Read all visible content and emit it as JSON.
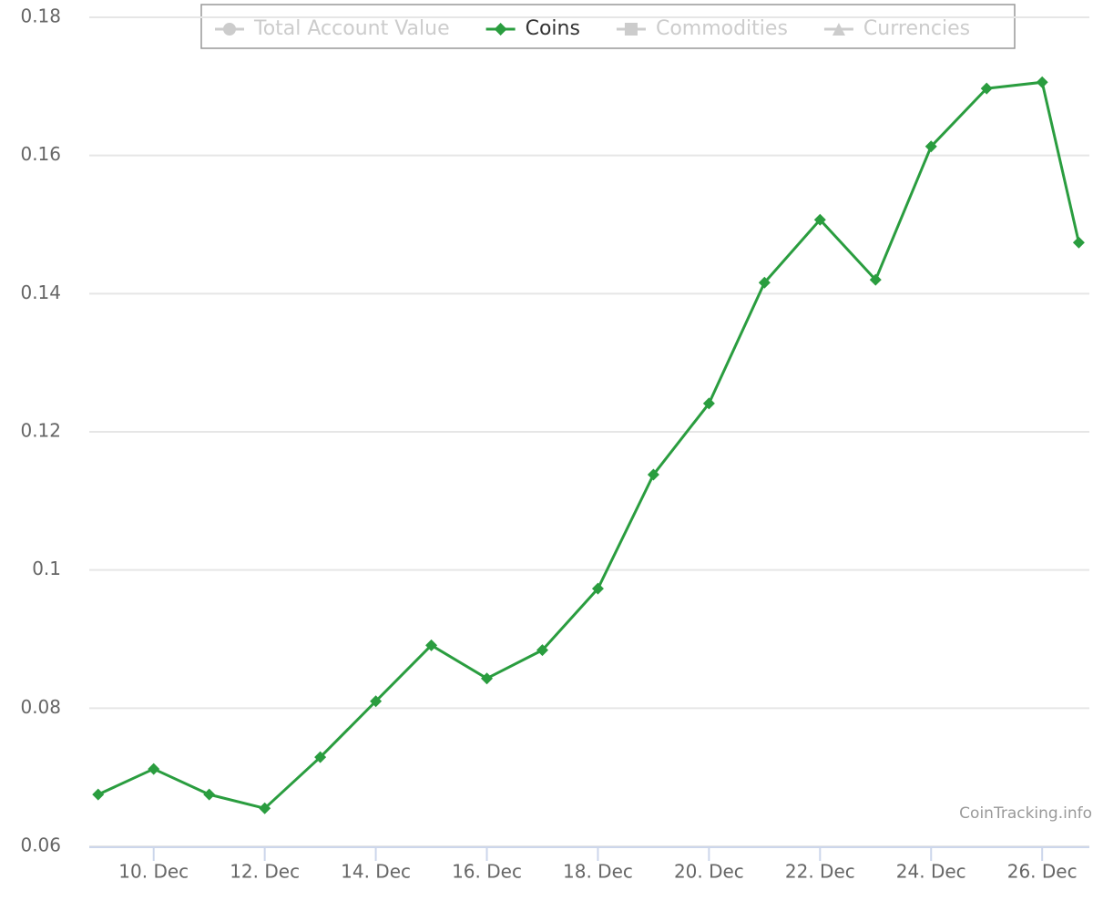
{
  "chart_data": {
    "type": "line",
    "x": [
      9,
      10,
      11,
      12,
      13,
      14,
      15,
      16,
      17,
      18,
      19,
      20,
      21,
      22,
      23,
      24,
      25,
      26,
      26.66
    ],
    "series": [
      {
        "name": "Total Account Value",
        "symbol": "circle",
        "visible": false,
        "color": "#cccccc"
      },
      {
        "name": "Coins",
        "symbol": "diamond",
        "visible": true,
        "color": "#2a9d3f",
        "values": [
          0.0675,
          0.0712,
          0.0675,
          0.0655,
          0.0729,
          0.081,
          0.0891,
          0.0843,
          0.0884,
          0.0973,
          0.1138,
          0.1241,
          0.1416,
          0.1507,
          0.142,
          0.1613,
          0.1697,
          0.1706,
          0.1474
        ]
      },
      {
        "name": "Commodities",
        "symbol": "square",
        "visible": false,
        "color": "#cccccc"
      },
      {
        "name": "Currencies",
        "symbol": "triangle",
        "visible": false,
        "color": "#cccccc"
      }
    ],
    "xlim": [
      8.84,
      26.85
    ],
    "xticks": [
      {
        "value": 10,
        "label": "10. Dec"
      },
      {
        "value": 12,
        "label": "12. Dec"
      },
      {
        "value": 14,
        "label": "14. Dec"
      },
      {
        "value": 16,
        "label": "16. Dec"
      },
      {
        "value": 18,
        "label": "18. Dec"
      },
      {
        "value": 20,
        "label": "20. Dec"
      },
      {
        "value": 22,
        "label": "22. Dec"
      },
      {
        "value": 24,
        "label": "24. Dec"
      },
      {
        "value": 26,
        "label": "26. Dec"
      }
    ],
    "ylim": [
      0.06,
      0.18
    ],
    "yticks": [
      0.06,
      0.08,
      0.1,
      0.12,
      0.14,
      0.16,
      0.18
    ],
    "grid": true,
    "credits": "CoinTracking.info"
  }
}
